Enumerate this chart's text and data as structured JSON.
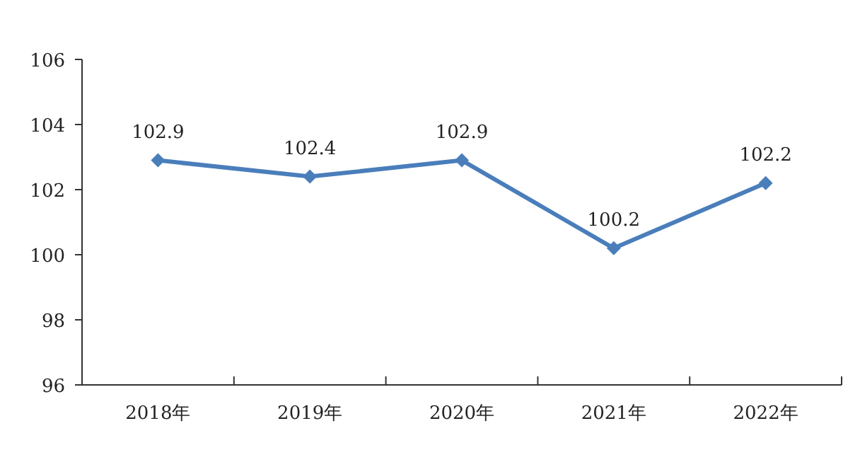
{
  "chart_data": {
    "type": "line",
    "categories": [
      "2018年",
      "2019年",
      "2020年",
      "2021年",
      "2022年"
    ],
    "series": [
      {
        "color": "#4a7ebb",
        "values": [
          102.9,
          102.4,
          102.9,
          100.2,
          102.2
        ]
      }
    ],
    "ylim": [
      96,
      106
    ],
    "yticks": [
      96,
      98,
      100,
      102,
      104,
      106
    ],
    "marker": "diamond",
    "line_style": "solid",
    "data_labels": true
  }
}
